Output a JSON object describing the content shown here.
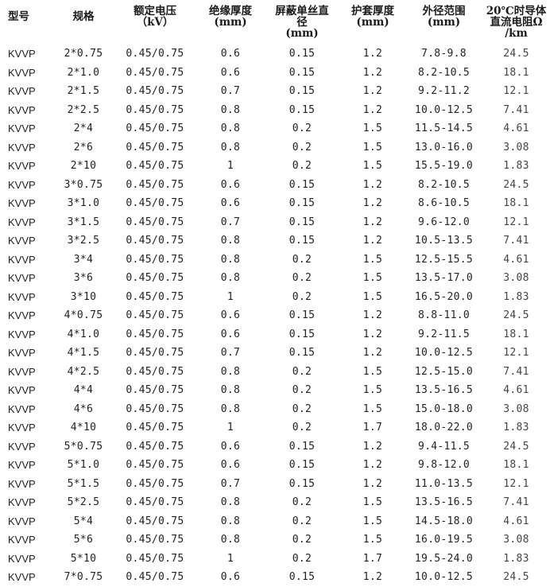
{
  "headers": {
    "model": "型号",
    "spec": "规格",
    "voltage": "额定电压\n（kV）",
    "insulation": "绝缘厚度\n(mm)",
    "shield": "屏蔽单丝直\n径\n(mm)",
    "sheath": "护套厚度\n(mm)",
    "outer_diameter": "外径范围\n(mm)",
    "resistance": "20℃时导体\n直流电阻Ω\n/km"
  },
  "rows": [
    [
      "KVVP",
      "2*0.75",
      "0.45/0.75",
      "0.6",
      "0.15",
      "1.2",
      "7.8-9.8",
      "24.5"
    ],
    [
      "KVVP",
      "2*1.0",
      "0.45/0.75",
      "0.6",
      "0.15",
      "1.2",
      "8.2-10.5",
      "18.1"
    ],
    [
      "KVVP",
      "2*1.5",
      "0.45/0.75",
      "0.7",
      "0.15",
      "1.2",
      "9.2-11.2",
      "12.1"
    ],
    [
      "KVVP",
      "2*2.5",
      "0.45/0.75",
      "0.8",
      "0.15",
      "1.2",
      "10.0-12.5",
      "7.41"
    ],
    [
      "KVVP",
      "2*4",
      "0.45/0.75",
      "0.8",
      "0.2",
      "1.5",
      "11.5-14.5",
      "4.61"
    ],
    [
      "KVVP",
      "2*6",
      "0.45/0.75",
      "0.8",
      "0.2",
      "1.5",
      "13.0-16.0",
      "3.08"
    ],
    [
      "KVVP",
      "2*10",
      "0.45/0.75",
      "1",
      "0.2",
      "1.5",
      "15.5-19.0",
      "1.83"
    ],
    [
      "KVVP",
      "3*0.75",
      "0.45/0.75",
      "0.6",
      "0.15",
      "1.2",
      "8.2-10.5",
      "24.5"
    ],
    [
      "KVVP",
      "3*1.0",
      "0.45/0.75",
      "0.6",
      "0.15",
      "1.2",
      "8.6-10.5",
      "18.1"
    ],
    [
      "KVVP",
      "3*1.5",
      "0.45/0.75",
      "0.7",
      "0.15",
      "1.2",
      "9.6-12.0",
      "12.1"
    ],
    [
      "KVVP",
      "3*2.5",
      "0.45/0.75",
      "0.8",
      "0.15",
      "1.2",
      "10.5-13.5",
      "7.41"
    ],
    [
      "KVVP",
      "3*4",
      "0.45/0.75",
      "0.8",
      "0.2",
      "1.5",
      "12.5-15.5",
      "4.61"
    ],
    [
      "KVVP",
      "3*6",
      "0.45/0.75",
      "0.8",
      "0.2",
      "1.5",
      "13.5-17.0",
      "3.08"
    ],
    [
      "KVVP",
      "3*10",
      "0.45/0.75",
      "1",
      "0.2",
      "1.5",
      "16.5-20.0",
      "1.83"
    ],
    [
      "KVVP",
      "4*0.75",
      "0.45/0.75",
      "0.6",
      "0.15",
      "1.2",
      "8.8-11.0",
      "24.5"
    ],
    [
      "KVVP",
      "4*1.0",
      "0.45/0.75",
      "0.6",
      "0.15",
      "1.2",
      "9.2-11.5",
      "18.1"
    ],
    [
      "KVVP",
      "4*1.5",
      "0.45/0.75",
      "0.7",
      "0.15",
      "1.2",
      "10.0-12.5",
      "12.1"
    ],
    [
      "KVVP",
      "4*2.5",
      "0.45/0.75",
      "0.8",
      "0.2",
      "1.5",
      "12.5-15.0",
      "7.41"
    ],
    [
      "KVVP",
      "4*4",
      "0.45/0.75",
      "0.8",
      "0.2",
      "1.5",
      "13.5-16.5",
      "4.61"
    ],
    [
      "KVVP",
      "4*6",
      "0.45/0.75",
      "0.8",
      "0.2",
      "1.5",
      "15.0-18.0",
      "3.08"
    ],
    [
      "KVVP",
      "4*10",
      "0.45/0.75",
      "1",
      "0.2",
      "1.7",
      "18.0-22.0",
      "1.83"
    ],
    [
      "KVVP",
      "5*0.75",
      "0.45/0.75",
      "0.6",
      "0.15",
      "1.2",
      "9.4-11.5",
      "24.5"
    ],
    [
      "KVVP",
      "5*1.0",
      "0.45/0.75",
      "0.6",
      "0.15",
      "1.2",
      "9.8-12.0",
      "18.1"
    ],
    [
      "KVVP",
      "5*1.5",
      "0.45/0.75",
      "0.7",
      "0.15",
      "1.2",
      "11.0-13.5",
      "12.1"
    ],
    [
      "KVVP",
      "5*2.5",
      "0.45/0.75",
      "0.8",
      "0.2",
      "1.5",
      "13.5-16.5",
      "7.41"
    ],
    [
      "KVVP",
      "5*4",
      "0.45/0.75",
      "0.8",
      "0.2",
      "1.5",
      "14.5-18.0",
      "4.61"
    ],
    [
      "KVVP",
      "5*6",
      "0.45/0.75",
      "0.8",
      "0.2",
      "1.5",
      "16.0-19.5",
      "3.08"
    ],
    [
      "KVVP",
      "5*10",
      "0.45/0.75",
      "1",
      "0.2",
      "1.7",
      "19.5-24.0",
      "1.83"
    ],
    [
      "KVVP",
      "7*0.75",
      "0.45/0.75",
      "0.6",
      "0.15",
      "1.2",
      "10.0-12.5",
      "24.5"
    ]
  ]
}
